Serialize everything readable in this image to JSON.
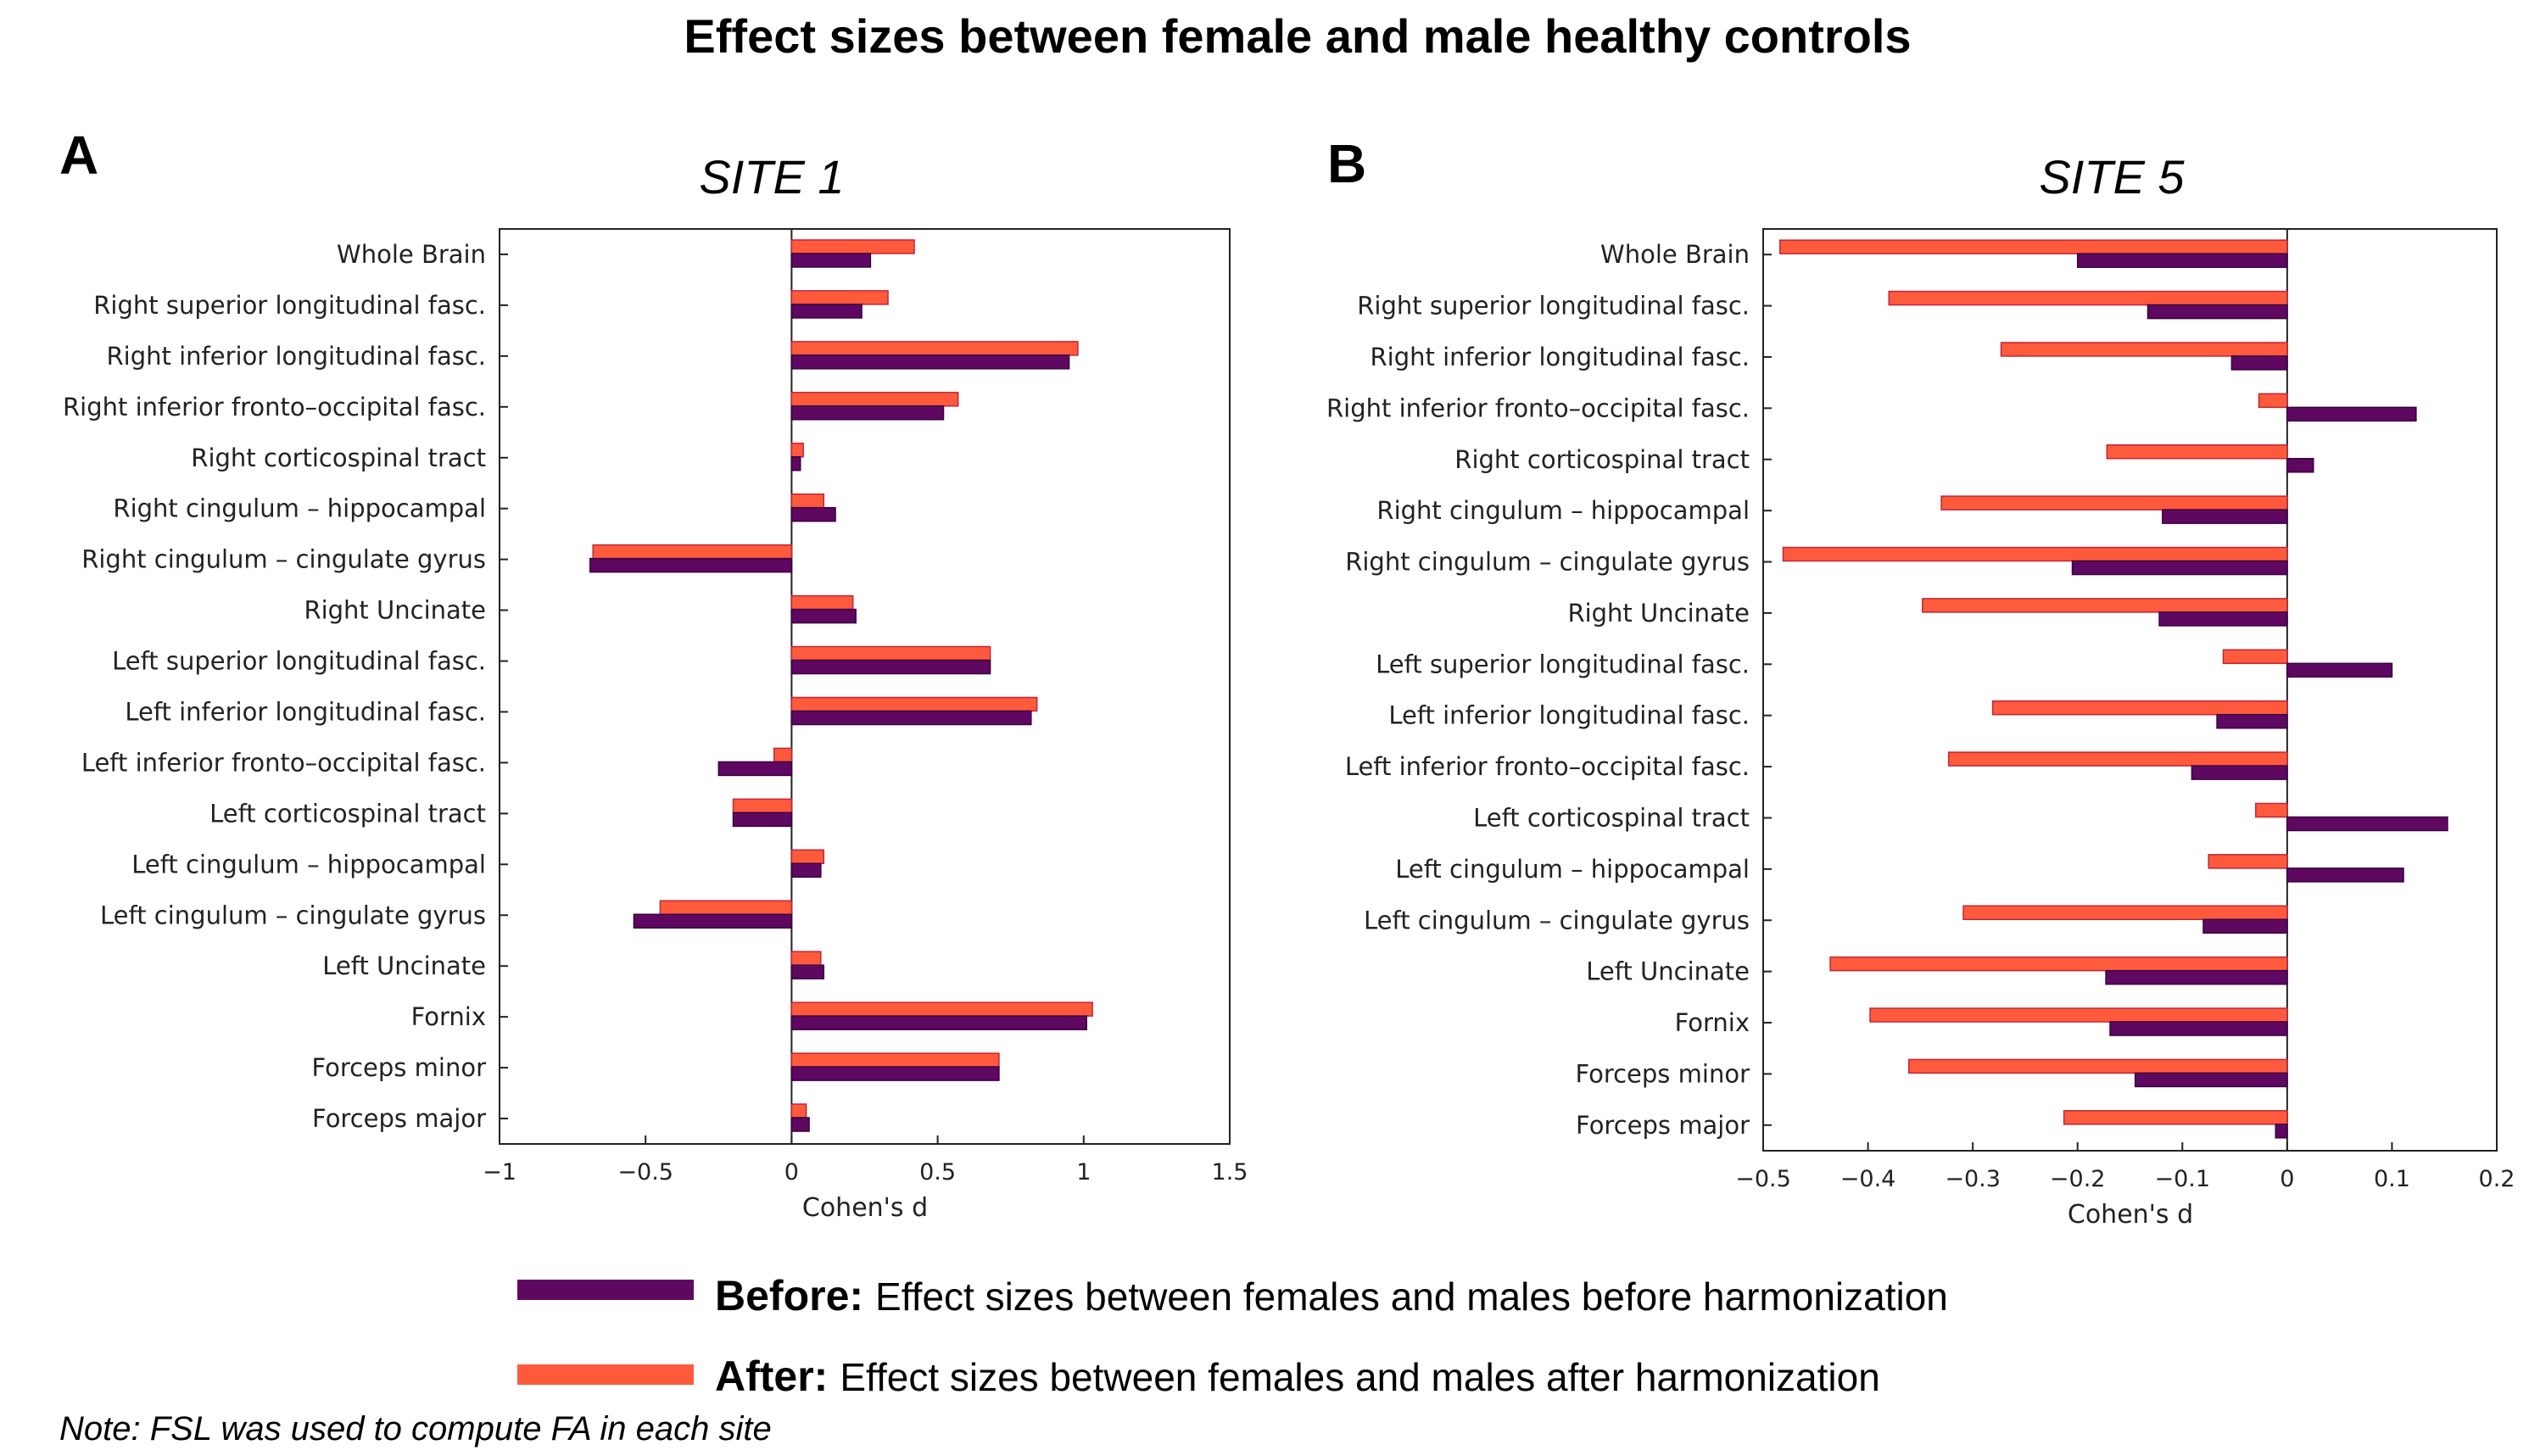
{
  "title": "Effect sizes between female and male healthy controls",
  "colors": {
    "before": "#5e0862",
    "after": "#ff5a3c",
    "after_edge": "#c0263a"
  },
  "legend": {
    "before_bold": "Before:",
    "before_text": "Effect sizes between females and males before harmonization",
    "after_bold": "After:",
    "after_text": "Effect sizes between females and males after harmonization"
  },
  "note": "Note: FSL was used to compute FA in each site",
  "chart_data": [
    {
      "type": "bar",
      "orientation": "horizontal",
      "panel": "A",
      "title": "SITE 1",
      "xlabel": "Cohen's d",
      "xlim": [
        -1,
        1.5
      ],
      "xticks": [
        -1,
        -0.5,
        0,
        0.5,
        1,
        1.5
      ],
      "xtick_labels": [
        "−1",
        "−0.5",
        "0",
        "0.5",
        "1",
        "1.5"
      ],
      "categories": [
        "Whole Brain",
        "Right superior longitudinal fasc.",
        "Right inferior longitudinal fasc.",
        "Right inferior fronto–occipital fasc.",
        "Right corticospinal tract",
        "Right cingulum – hippocampal",
        "Right cingulum – cingulate gyrus",
        "Right Uncinate",
        "Left superior longitudinal fasc.",
        "Left inferior longitudinal fasc.",
        "Left inferior fronto–occipital fasc.",
        "Left corticospinal tract",
        "Left cingulum – hippocampal",
        "Left cingulum – cingulate gyrus",
        "Left Uncinate",
        "Fornix",
        "Forceps minor",
        "Forceps major"
      ],
      "series": [
        {
          "name": "After",
          "values": [
            0.42,
            0.33,
            0.98,
            0.57,
            0.04,
            0.11,
            -0.68,
            0.21,
            0.68,
            0.84,
            -0.06,
            -0.2,
            0.11,
            -0.45,
            0.1,
            1.03,
            0.71,
            0.05
          ]
        },
        {
          "name": "Before",
          "values": [
            0.27,
            0.24,
            0.95,
            0.52,
            0.03,
            0.15,
            -0.69,
            0.22,
            0.68,
            0.82,
            -0.25,
            -0.2,
            0.1,
            -0.54,
            0.11,
            1.01,
            0.71,
            0.06
          ]
        }
      ]
    },
    {
      "type": "bar",
      "orientation": "horizontal",
      "panel": "B",
      "title": "SITE 5",
      "xlabel": "Cohen's d",
      "xlim": [
        -0.5,
        0.2
      ],
      "xticks": [
        -0.5,
        -0.4,
        -0.3,
        -0.2,
        -0.1,
        0,
        0.1,
        0.2
      ],
      "xtick_labels": [
        "−0.5",
        "−0.4",
        "−0.3",
        "−0.2",
        "−0.1",
        "0",
        "0.1",
        "0.2"
      ],
      "categories": [
        "Whole Brain",
        "Right superior longitudinal fasc.",
        "Right inferior longitudinal fasc.",
        "Right inferior fronto–occipital fasc.",
        "Right corticospinal tract",
        "Right cingulum – hippocampal",
        "Right cingulum – cingulate gyrus",
        "Right Uncinate",
        "Left superior longitudinal fasc.",
        "Left inferior longitudinal fasc.",
        "Left inferior fronto–occipital fasc.",
        "Left corticospinal tract",
        "Left cingulum – hippocampal",
        "Left cingulum – cingulate gyrus",
        "Left Uncinate",
        "Fornix",
        "Forceps minor",
        "Forceps major"
      ],
      "series": [
        {
          "name": "After",
          "values": [
            -0.484,
            -0.38,
            -0.273,
            -0.027,
            -0.172,
            -0.33,
            -0.481,
            -0.348,
            -0.061,
            -0.281,
            -0.323,
            -0.03,
            -0.075,
            -0.309,
            -0.436,
            -0.398,
            -0.361,
            -0.213
          ]
        },
        {
          "name": "Before",
          "values": [
            -0.2,
            -0.133,
            -0.053,
            0.123,
            0.025,
            -0.119,
            -0.205,
            -0.122,
            0.1,
            -0.067,
            -0.091,
            0.153,
            0.111,
            -0.08,
            -0.173,
            -0.169,
            -0.145,
            -0.011
          ]
        }
      ]
    }
  ]
}
